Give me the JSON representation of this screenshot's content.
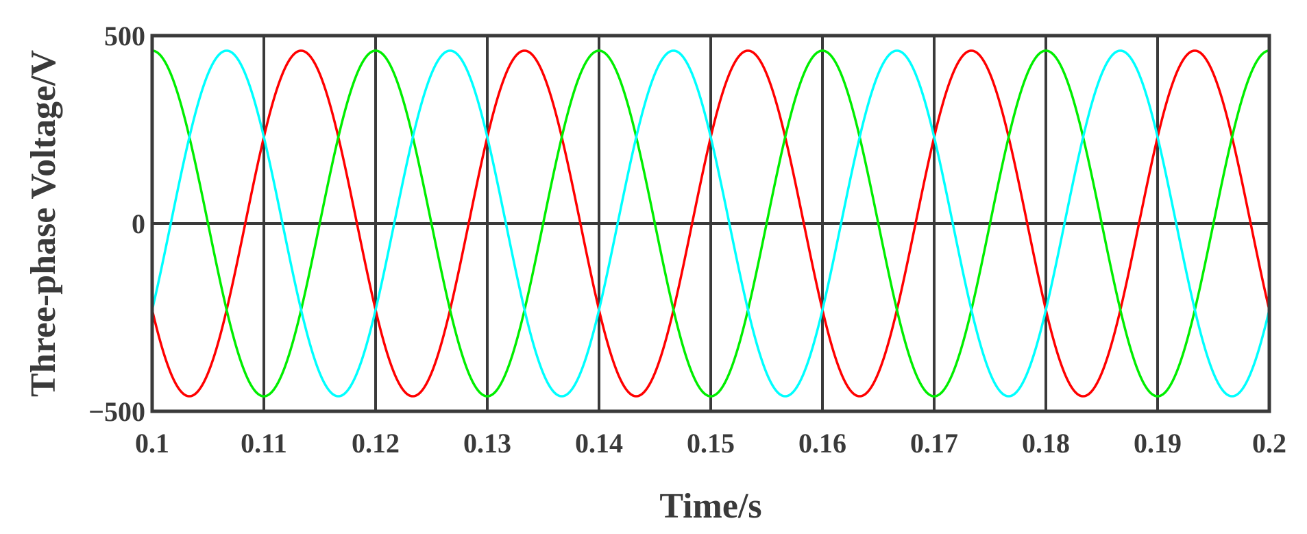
{
  "chart_data": {
    "type": "line",
    "xlabel": "Time/s",
    "ylabel": "Three-phase Voltage/V",
    "xlim": [
      0.1,
      0.2
    ],
    "ylim": [
      -500,
      500
    ],
    "x_ticks": [
      "0.1",
      "0.11",
      "0.12",
      "0.13",
      "0.14",
      "0.15",
      "0.16",
      "0.17",
      "0.18",
      "0.19",
      "0.2"
    ],
    "y_ticks": [
      "500",
      "0",
      "−500"
    ],
    "grid": true,
    "waveform": {
      "amplitude": 460,
      "frequency_hz": 50,
      "samples_per_series": 801
    },
    "series": [
      {
        "color": "#ff0000",
        "phase_deg": -150
      },
      {
        "color": "#00ee00",
        "phase_deg": 90
      },
      {
        "color": "#00ffff",
        "phase_deg": -30
      }
    ]
  }
}
